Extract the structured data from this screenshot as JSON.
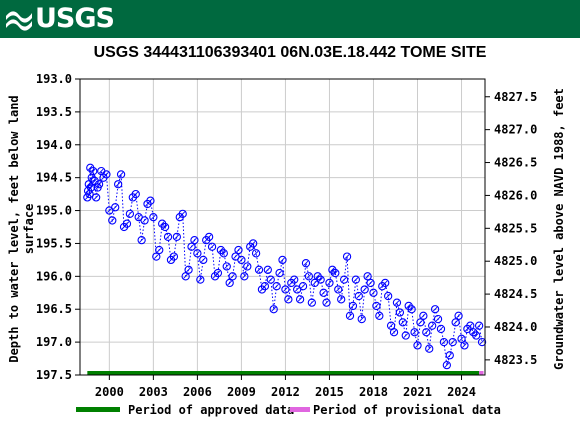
{
  "header": {
    "logo_text": "USGS"
  },
  "chart_data": {
    "type": "scatter",
    "title": "USGS 344431106393401 06N.03E.18.442 TOME SITE",
    "ylabel_left_line1": "Depth to water level, feet below land",
    "ylabel_left_line2": "surface",
    "ylabel_right": "Groundwater level above NAVD 1988, feet",
    "xlim": [
      1998.0,
      2025.6
    ],
    "ylim": [
      193.0,
      197.5
    ],
    "y_inverted": true,
    "ylim_right": [
      4827.77,
      4823.27
    ],
    "x_ticks": [
      2000,
      2003,
      2006,
      2009,
      2012,
      2015,
      2018,
      2021,
      2024
    ],
    "y_ticks": [
      193.0,
      193.5,
      194.0,
      194.5,
      195.0,
      195.5,
      196.0,
      196.5,
      197.0,
      197.5
    ],
    "y_ticks_right": [
      4827.5,
      4827.0,
      4826.5,
      4826.0,
      4825.5,
      4825.0,
      4824.5,
      4824.0,
      4823.5
    ],
    "grid": true,
    "colors": {
      "points": "#0000ff",
      "approved": "#008000",
      "provisional": "#e066e0",
      "grid": "#cccccc"
    },
    "series": [
      {
        "x": [
          1998.5,
          1998.55,
          1998.6,
          1998.65,
          1998.7,
          1998.75,
          1998.8,
          1998.9,
          1999.0,
          1999.1,
          1999.2,
          1999.3,
          1999.45,
          1999.6,
          1999.8,
          2000.0,
          2000.2,
          2000.4,
          2000.6,
          2000.8,
          2001.0,
          2001.2,
          2001.4,
          2001.6,
          2001.8,
          2002.0,
          2002.2,
          2002.4,
          2002.6,
          2002.8,
          2003.0,
          2003.2,
          2003.4,
          2003.6,
          2003.8,
          2004.0,
          2004.2,
          2004.4,
          2004.6,
          2004.8,
          2005.0,
          2005.2,
          2005.4,
          2005.6,
          2005.8,
          2006.0,
          2006.2,
          2006.4,
          2006.6,
          2006.8,
          2007.0,
          2007.2,
          2007.4,
          2007.6,
          2007.8,
          2008.0,
          2008.2,
          2008.4,
          2008.6,
          2008.8,
          2009.0,
          2009.2,
          2009.4,
          2009.6,
          2009.8,
          2010.0,
          2010.2,
          2010.4,
          2010.6,
          2010.8,
          2011.0,
          2011.2,
          2011.4,
          2011.6,
          2011.8,
          2012.0,
          2012.2,
          2012.4,
          2012.6,
          2012.8,
          2013.0,
          2013.2,
          2013.4,
          2013.6,
          2013.8,
          2014.0,
          2014.2,
          2014.4,
          2014.6,
          2014.8,
          2015.0,
          2015.2,
          2015.4,
          2015.6,
          2015.8,
          2016.0,
          2016.2,
          2016.4,
          2016.6,
          2016.8,
          2017.0,
          2017.2,
          2017.4,
          2017.6,
          2017.8,
          2018.0,
          2018.2,
          2018.4,
          2018.6,
          2018.8,
          2019.0,
          2019.2,
          2019.4,
          2019.6,
          2019.8,
          2020.0,
          2020.2,
          2020.4,
          2020.6,
          2020.8,
          2021.0,
          2021.2,
          2021.4,
          2021.6,
          2021.8,
          2022.0,
          2022.2,
          2022.4,
          2022.6,
          2022.8,
          2023.0,
          2023.2,
          2023.4,
          2023.6,
          2023.8,
          2024.0,
          2024.2,
          2024.4,
          2024.6,
          2024.8,
          2025.0,
          2025.2,
          2025.4
        ],
        "y": [
          194.8,
          194.7,
          194.6,
          194.75,
          194.35,
          194.65,
          194.5,
          194.4,
          194.55,
          194.8,
          194.65,
          194.6,
          194.4,
          194.5,
          194.45,
          195.0,
          195.15,
          194.95,
          194.6,
          194.45,
          195.25,
          195.2,
          195.05,
          194.8,
          194.75,
          195.1,
          195.45,
          195.15,
          194.9,
          194.85,
          195.1,
          195.7,
          195.6,
          195.2,
          195.25,
          195.4,
          195.75,
          195.7,
          195.4,
          195.1,
          195.05,
          196.0,
          195.9,
          195.55,
          195.45,
          195.65,
          196.05,
          195.75,
          195.45,
          195.4,
          195.55,
          196.0,
          195.95,
          195.6,
          195.65,
          195.85,
          196.1,
          196.0,
          195.7,
          195.6,
          195.75,
          196.0,
          195.85,
          195.55,
          195.5,
          195.65,
          195.9,
          196.2,
          196.15,
          195.9,
          196.05,
          196.5,
          196.15,
          195.95,
          195.75,
          196.2,
          196.35,
          196.1,
          196.05,
          196.2,
          196.35,
          196.15,
          195.8,
          196.0,
          196.4,
          196.1,
          196.0,
          196.05,
          196.25,
          196.4,
          196.1,
          195.9,
          195.95,
          196.2,
          196.35,
          196.05,
          195.7,
          196.6,
          196.45,
          196.05,
          196.3,
          196.65,
          196.2,
          196.0,
          196.1,
          196.25,
          196.45,
          196.6,
          196.15,
          196.1,
          196.3,
          196.75,
          196.85,
          196.4,
          196.55,
          196.7,
          196.9,
          196.45,
          196.5,
          196.85,
          197.05,
          196.7,
          196.6,
          196.85,
          197.1,
          196.75,
          196.5,
          196.65,
          196.8,
          197.0,
          197.35,
          197.2,
          197.0,
          196.7,
          196.6,
          196.95,
          197.05,
          196.8,
          196.75,
          196.85,
          196.9,
          196.75,
          197.0
        ]
      }
    ],
    "periods": [
      {
        "label": "Period of approved data",
        "start": 1998.5,
        "end": 2025.2,
        "color": "#008000"
      },
      {
        "label": "Period of provisional data",
        "start": 2025.2,
        "end": 2025.5,
        "color": "#e066e0"
      }
    ]
  }
}
